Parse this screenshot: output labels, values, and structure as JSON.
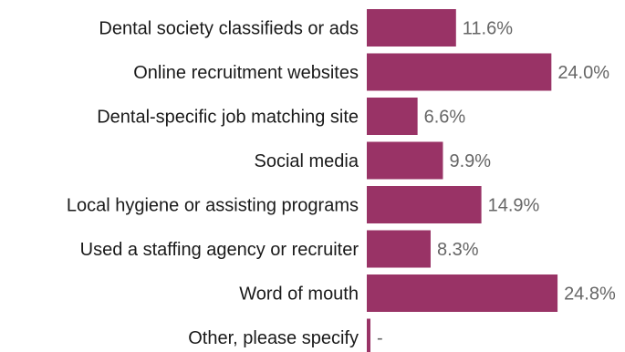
{
  "chart_data": {
    "type": "bar",
    "orientation": "horizontal",
    "categories": [
      "Dental society classifieds or ads",
      "Online recruitment websites",
      "Dental-specific job matching site",
      "Social media",
      "Local hygiene or assisting programs",
      "Used a staffing agency or recruiter",
      "Word of mouth",
      "Other, please specify"
    ],
    "values": [
      11.6,
      24.0,
      6.6,
      9.9,
      14.9,
      8.3,
      24.8,
      0
    ],
    "value_labels": [
      "11.6%",
      "24.0%",
      "6.6%",
      "9.9%",
      "14.9%",
      "8.3%",
      "24.8%",
      "-"
    ],
    "bar_color": "#993366",
    "grid": false,
    "legend": "none"
  }
}
